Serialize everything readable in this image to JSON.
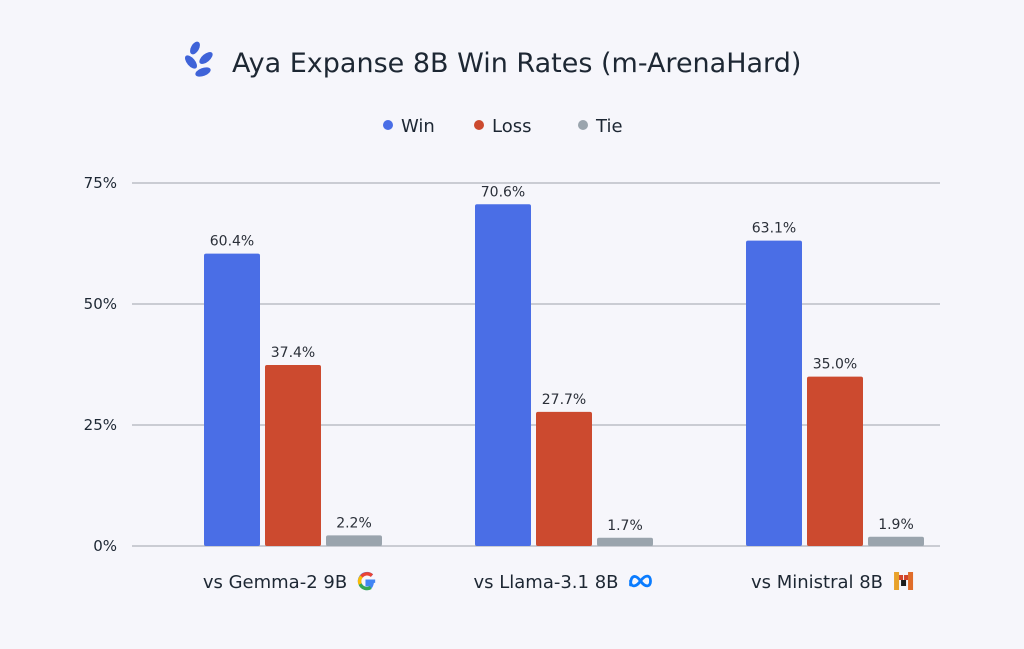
{
  "chart_data": {
    "type": "bar",
    "title": "Aya Expanse 8B Win Rates (m-ArenaHard)",
    "categories": [
      "vs Gemma-2 9B",
      "vs Llama-3.1 8B",
      "vs Ministral 8B"
    ],
    "category_icons": [
      "google-logo-icon",
      "meta-logo-icon",
      "mistral-logo-icon"
    ],
    "series": [
      {
        "name": "Win",
        "values": [
          60.4,
          70.6,
          63.1
        ],
        "labels": [
          "60.4%",
          "70.6%",
          "63.1%"
        ],
        "color": "#4a6ee6"
      },
      {
        "name": "Loss",
        "values": [
          37.4,
          27.7,
          35.0
        ],
        "labels": [
          "37.4%",
          "27.7%",
          "35.0%"
        ],
        "color": "#cc4a2f"
      },
      {
        "name": "Tie",
        "values": [
          2.2,
          1.7,
          1.9
        ],
        "labels": [
          "2.2%",
          "1.7%",
          "1.9%"
        ],
        "color": "#9aa4ad"
      }
    ],
    "ylim": [
      0,
      75
    ],
    "yticks": [
      0,
      25,
      50,
      75
    ],
    "ytick_labels": [
      "0%",
      "25%",
      "50%",
      "75%"
    ],
    "grid": true,
    "legend_position": "top-center",
    "xlabel": "",
    "ylabel": ""
  },
  "colors": {
    "background": "#f6f6fb",
    "gridline": "#9da3ab",
    "text": "#1d2733",
    "logo_accent": "#3f63d8"
  }
}
